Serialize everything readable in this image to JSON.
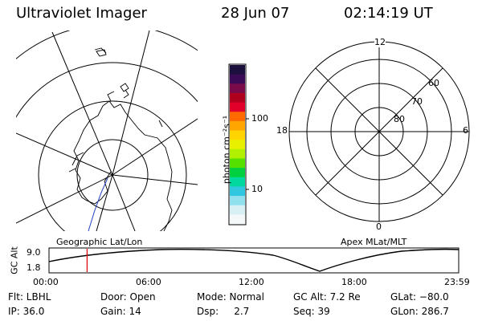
{
  "header": {
    "instrument": "Ultraviolet Imager",
    "date": "28 Jun 07",
    "time": "02:14:19 UT"
  },
  "colorbar": {
    "unit_label": "photon cm⁻²s⁻¹",
    "tick_high": "100",
    "tick_low": "10",
    "colors": [
      "#1a0f3d",
      "#3b0a57",
      "#7a0a4a",
      "#b00020",
      "#e0002a",
      "#ff6a00",
      "#ffa500",
      "#ffd400",
      "#e8f000",
      "#b0f000",
      "#55e000",
      "#00d040",
      "#00d8a0",
      "#30c8e0",
      "#90e0f0",
      "#d8f0f4",
      "#f4f8f8"
    ]
  },
  "geo_panel": {
    "label": "Geographic Lat/Lon"
  },
  "apex_panel": {
    "label": "Apex MLat/MLT",
    "mlt_labels": {
      "top": "12",
      "right": "6",
      "bottom": "0",
      "left": "18"
    },
    "lat_labels": [
      "60",
      "70",
      "80"
    ]
  },
  "timeline": {
    "ylabel": "GC Alt",
    "y_ticks": [
      "9.0",
      "1.8"
    ],
    "x_ticks": [
      "00:00",
      "06:00",
      "12:00",
      "18:00",
      "23:59"
    ],
    "current_marker_fraction": 0.093
  },
  "info": {
    "row1": [
      "Flt: LBHL",
      "Door: Open",
      "Mode: Normal",
      "GC Alt: 7.2 Re",
      "GLat: −80.0"
    ],
    "row2": [
      "IP: 36.0",
      "Gain: 14",
      "Dsp:     2.7",
      "Seq: 39",
      "GLon: 286.7"
    ]
  }
}
